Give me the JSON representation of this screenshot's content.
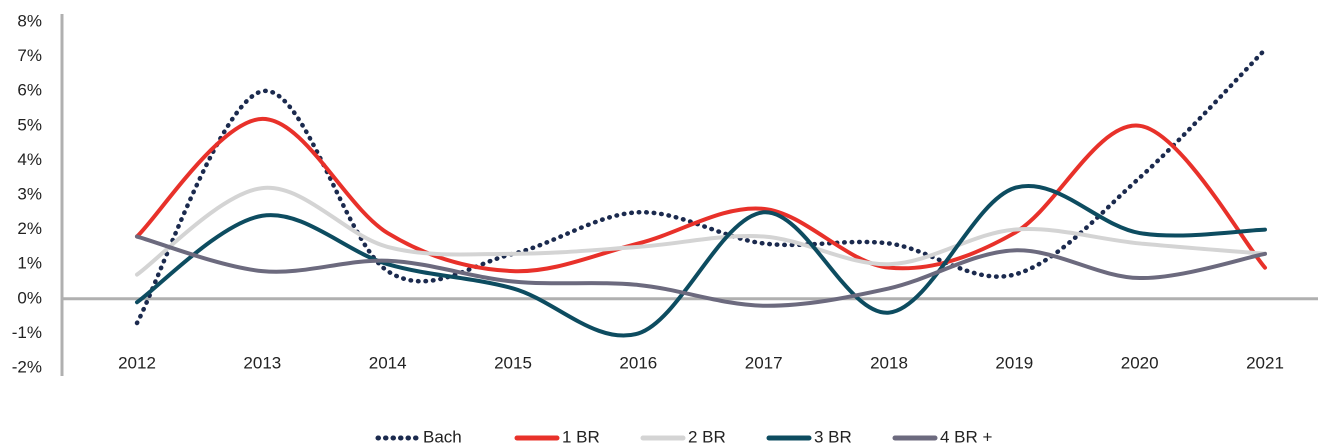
{
  "chart_data": {
    "type": "line",
    "categories": [
      "2012",
      "2013",
      "2014",
      "2015",
      "2016",
      "2017",
      "2018",
      "2019",
      "2020",
      "2021"
    ],
    "series": [
      {
        "name": "Bach",
        "color": "#1b2a4e",
        "values": [
          -0.7,
          6.0,
          0.8,
          1.3,
          2.5,
          1.6,
          1.6,
          0.7,
          3.5,
          7.2
        ]
      },
      {
        "name": "1 BR",
        "color": "#e8312a",
        "values": [
          1.8,
          5.2,
          1.9,
          0.8,
          1.6,
          2.6,
          0.9,
          1.9,
          5.0,
          0.9
        ]
      },
      {
        "name": "2 BR",
        "color": "#d4d4d4",
        "values": [
          0.7,
          3.2,
          1.5,
          1.3,
          1.5,
          1.8,
          1.0,
          2.0,
          1.6,
          1.3
        ]
      },
      {
        "name": "3 BR",
        "color": "#0d4c60",
        "values": [
          -0.1,
          2.4,
          1.0,
          0.3,
          -1.0,
          2.5,
          -0.4,
          3.2,
          1.9,
          2.0
        ]
      },
      {
        "name": "4 BR +",
        "color": "#6c6a7e",
        "values": [
          1.8,
          0.8,
          1.1,
          0.5,
          0.4,
          -0.2,
          0.3,
          1.4,
          0.6,
          1.3
        ]
      }
    ],
    "ylim": [
      -2,
      8
    ],
    "yticks": [
      {
        "value": -2,
        "label": "-2%"
      },
      {
        "value": -1,
        "label": "-1%"
      },
      {
        "value": 0,
        "label": "0%"
      },
      {
        "value": 1,
        "label": "1%"
      },
      {
        "value": 2,
        "label": "2%"
      },
      {
        "value": 3,
        "label": "3%"
      },
      {
        "value": 4,
        "label": "4%"
      },
      {
        "value": 5,
        "label": "5%"
      },
      {
        "value": 6,
        "label": "6%"
      },
      {
        "value": 7,
        "label": "7%"
      },
      {
        "value": 8,
        "label": "8%"
      }
    ],
    "legend": "bottom"
  }
}
